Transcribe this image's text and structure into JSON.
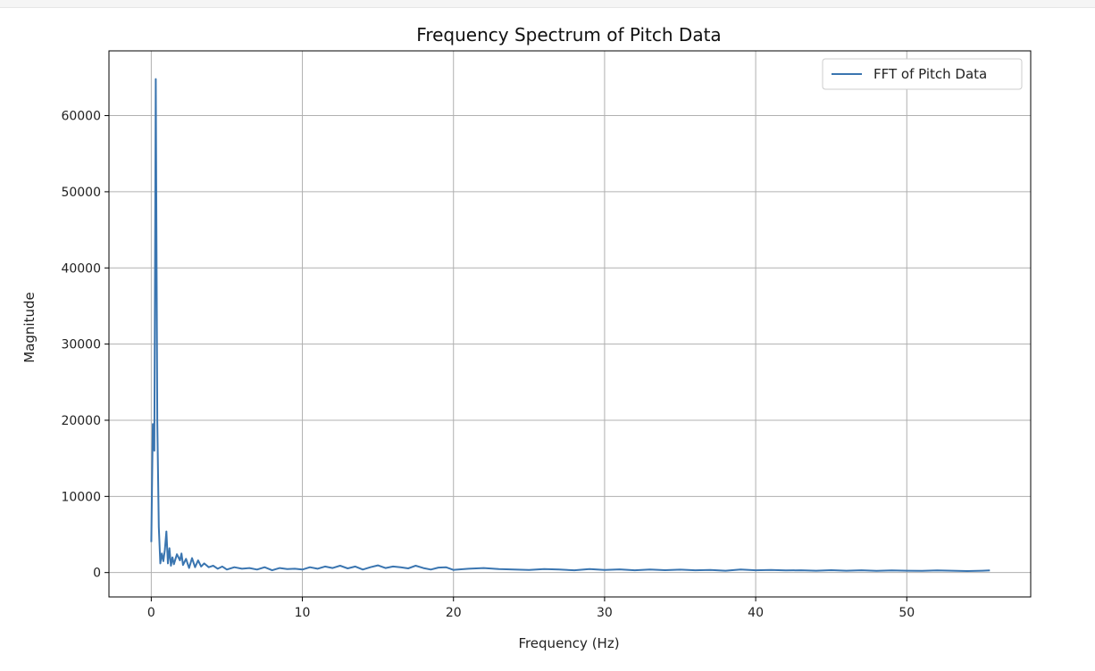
{
  "chart_data": {
    "type": "line",
    "title": "Frequency Spectrum of Pitch Data",
    "xlabel": "Frequency (Hz)",
    "ylabel": "Magnitude",
    "xlim": [
      -2.8,
      58.2
    ],
    "ylim": [
      -3200,
      68500
    ],
    "xticks": [
      0,
      10,
      20,
      30,
      40,
      50
    ],
    "yticks": [
      0,
      10000,
      20000,
      30000,
      40000,
      50000,
      60000
    ],
    "grid": true,
    "legend_position": "top-right",
    "color": "#3a75b0",
    "series": [
      {
        "name": "FFT of Pitch Data",
        "x": [
          0,
          0.1,
          0.2,
          0.3,
          0.4,
          0.5,
          0.6,
          0.7,
          0.8,
          0.9,
          1.0,
          1.1,
          1.2,
          1.3,
          1.4,
          1.5,
          1.7,
          1.9,
          2.0,
          2.1,
          2.3,
          2.5,
          2.7,
          2.9,
          3.1,
          3.3,
          3.5,
          3.8,
          4.1,
          4.4,
          4.7,
          5.0,
          5.5,
          6.0,
          6.5,
          7.0,
          7.5,
          8.0,
          8.5,
          9.0,
          9.5,
          10.0,
          10.5,
          11.0,
          11.5,
          12.0,
          12.5,
          13.0,
          13.5,
          14.0,
          14.5,
          15.0,
          15.5,
          16.0,
          16.5,
          17.0,
          17.5,
          18.0,
          18.5,
          19.0,
          19.5,
          20.0,
          21.0,
          22.0,
          23.0,
          24.0,
          25.0,
          26.0,
          27.0,
          28.0,
          29.0,
          30.0,
          31.0,
          32.0,
          33.0,
          34.0,
          35.0,
          36.0,
          37.0,
          38.0,
          39.0,
          40.0,
          41.0,
          42.0,
          43.0,
          44.0,
          45.0,
          46.0,
          47.0,
          48.0,
          49.0,
          50.0,
          51.0,
          52.0,
          53.0,
          54.0,
          55.0,
          55.5
        ],
        "y": [
          4000,
          19500,
          16000,
          64800,
          20000,
          6000,
          1200,
          2500,
          1500,
          3000,
          5400,
          1200,
          3200,
          900,
          2000,
          1100,
          2400,
          1600,
          2500,
          1000,
          1800,
          600,
          1900,
          700,
          1600,
          800,
          1200,
          700,
          900,
          500,
          800,
          400,
          700,
          500,
          600,
          400,
          700,
          300,
          600,
          450,
          500,
          400,
          700,
          500,
          800,
          600,
          900,
          550,
          800,
          400,
          700,
          950,
          600,
          800,
          700,
          550,
          900,
          600,
          400,
          650,
          700,
          350,
          500,
          600,
          450,
          400,
          350,
          450,
          400,
          300,
          450,
          350,
          420,
          300,
          400,
          320,
          380,
          300,
          350,
          250,
          400,
          300,
          350,
          280,
          300,
          250,
          320,
          250,
          300,
          220,
          280,
          250,
          230,
          280,
          240,
          200,
          250,
          280
        ]
      }
    ]
  }
}
